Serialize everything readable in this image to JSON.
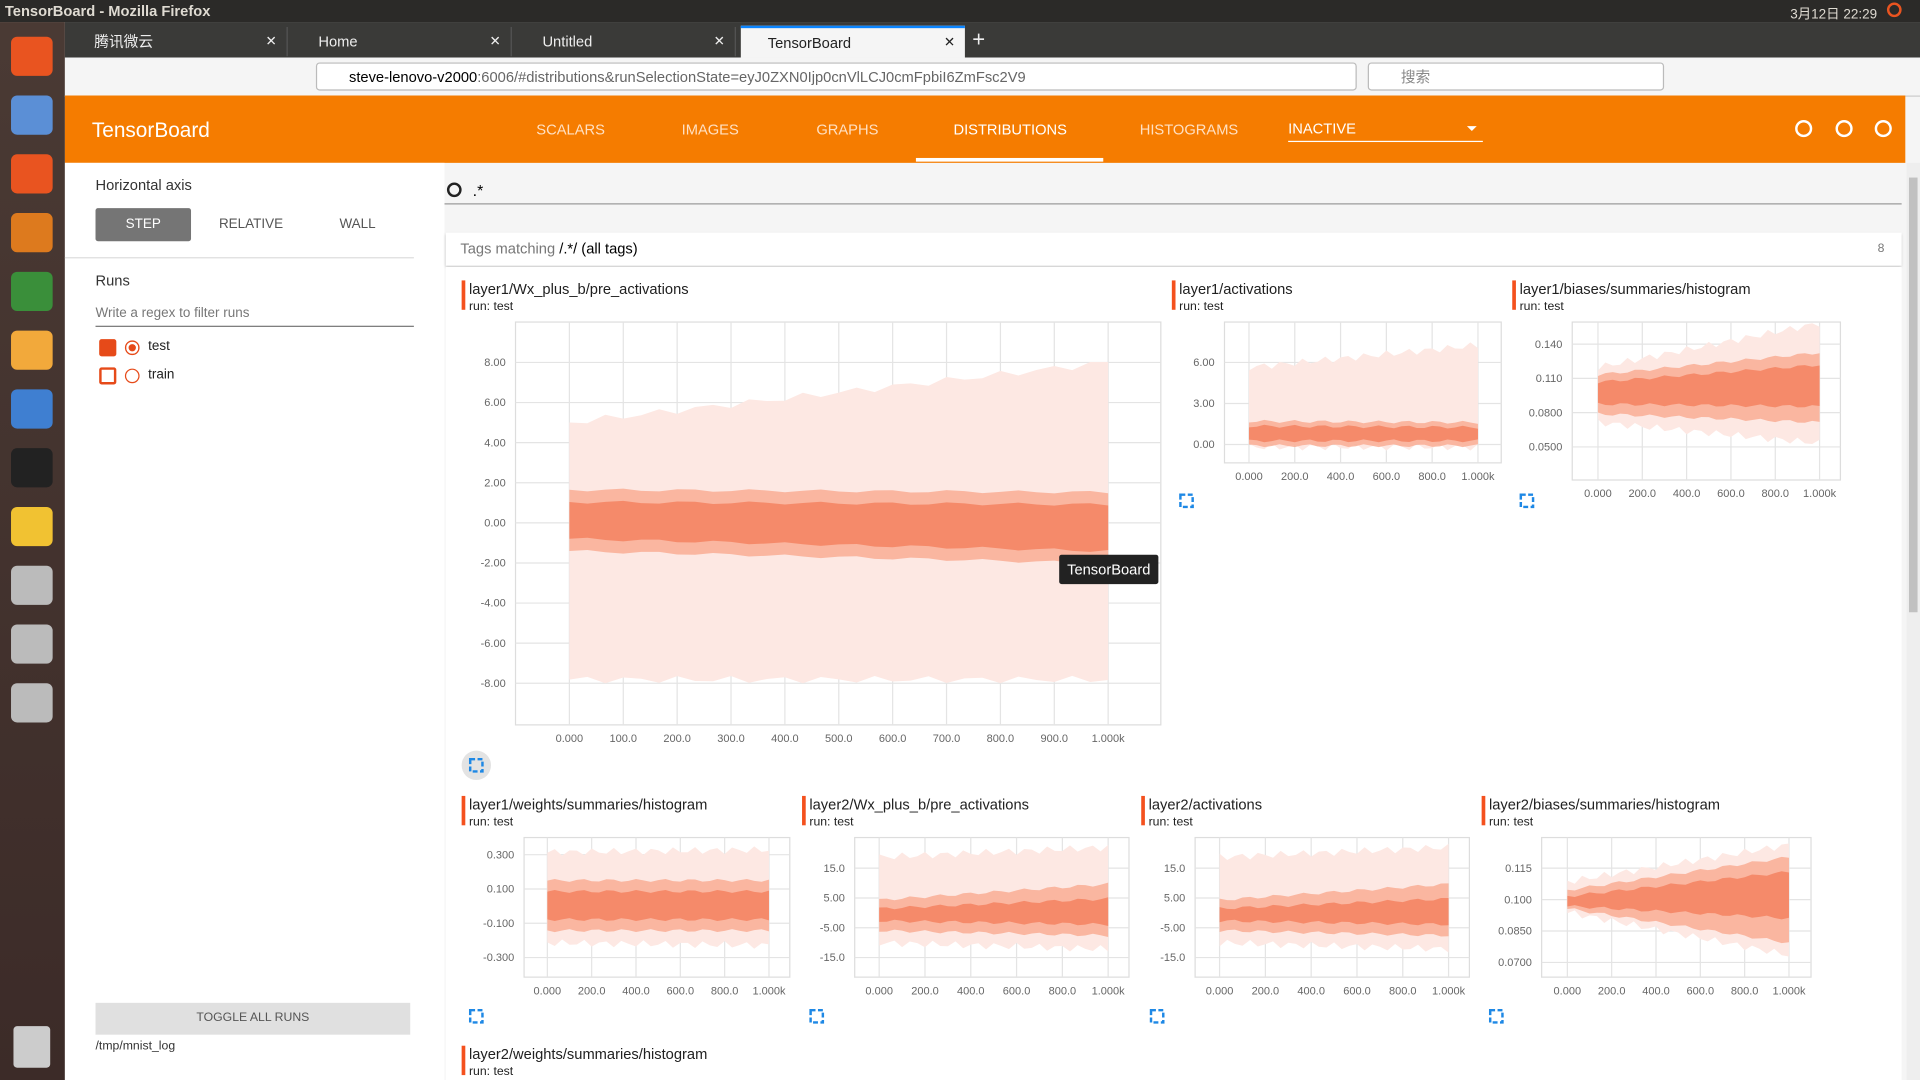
{
  "os": {
    "window_title": "TensorBoard - Mozilla Firefox",
    "clock": "3月12日 22:29"
  },
  "browser": {
    "tabs": [
      "腾讯微云",
      "Home",
      "Untitled",
      "TensorBoard"
    ],
    "url_host": "steve-lenovo-v2000",
    "url_rest": ":6006/#distributions&runSelectionState=eyJ0ZXN0Ijp0cnVlLCJ0cmFpbiI6ZmFsc2V9",
    "search_placeholder": "搜索"
  },
  "header": {
    "title": "TensorBoard",
    "nav": [
      "SCALARS",
      "IMAGES",
      "GRAPHS",
      "DISTRIBUTIONS",
      "HISTOGRAMS"
    ],
    "inactive": "INACTIVE"
  },
  "sidebar": {
    "horizontal_axis": "Horizontal axis",
    "axis_options": [
      "STEP",
      "RELATIVE",
      "WALL"
    ],
    "runs_label": "Runs",
    "filter_placeholder": "Write a regex to filter runs",
    "runs": [
      "test",
      "train"
    ],
    "toggle": "TOGGLE ALL RUNS",
    "logdir": "/tmp/mnist_log"
  },
  "main": {
    "search": ".*",
    "tags_matching": "Tags matching",
    "tags_regex": "/.*/",
    "tags_all": "(all tags)",
    "tag_count": 8,
    "tooltip": "TensorBoard",
    "charts": [
      {
        "title": "layer1/Wx_plus_b/pre_activations",
        "run": "run: test",
        "yticks": [
          "8.00",
          "6.00",
          "4.00",
          "2.00",
          "0.00",
          "-2.00",
          "-4.00",
          "-6.00",
          "-8.00"
        ],
        "xticks": [
          "0.000",
          "100.0",
          "200.0",
          "300.0",
          "400.0",
          "500.0",
          "600.0",
          "700.0",
          "800.0",
          "900.0",
          "1.000k"
        ]
      },
      {
        "title": "layer1/activations",
        "run": "run: test",
        "yticks": [
          "6.00",
          "3.00",
          "0.00"
        ],
        "xticks": [
          "0.000",
          "200.0",
          "400.0",
          "600.0",
          "800.0",
          "1.000k"
        ]
      },
      {
        "title": "layer1/biases/summaries/histogram",
        "run": "run: test",
        "yticks": [
          "0.140",
          "0.110",
          "0.0800",
          "0.0500"
        ],
        "xticks": [
          "0.000",
          "200.0",
          "400.0",
          "600.0",
          "800.0",
          "1.000k"
        ]
      },
      {
        "title": "layer1/weights/summaries/histogram",
        "run": "run: test",
        "yticks": [
          "0.300",
          "0.100",
          "-0.100",
          "-0.300"
        ],
        "xticks": [
          "0.000",
          "200.0",
          "400.0",
          "600.0",
          "800.0",
          "1.000k"
        ]
      },
      {
        "title": "layer2/Wx_plus_b/pre_activations",
        "run": "run: test",
        "yticks": [
          "15.0",
          "5.00",
          "-5.00",
          "-15.0"
        ],
        "xticks": [
          "0.000",
          "200.0",
          "400.0",
          "600.0",
          "800.0",
          "1.000k"
        ]
      },
      {
        "title": "layer2/activations",
        "run": "run: test",
        "yticks": [
          "15.0",
          "5.00",
          "-5.00",
          "-15.0"
        ],
        "xticks": [
          "0.000",
          "200.0",
          "400.0",
          "600.0",
          "800.0",
          "1.000k"
        ]
      },
      {
        "title": "layer2/biases/summaries/histogram",
        "run": "run: test",
        "yticks": [
          "0.115",
          "0.100",
          "0.0850",
          "0.0700"
        ],
        "xticks": [
          "0.000",
          "200.0",
          "400.0",
          "600.0",
          "800.0",
          "1.000k"
        ]
      },
      {
        "title": "layer2/weights/summaries/histogram",
        "run": "run: test",
        "yticks": [],
        "xticks": []
      }
    ]
  }
}
